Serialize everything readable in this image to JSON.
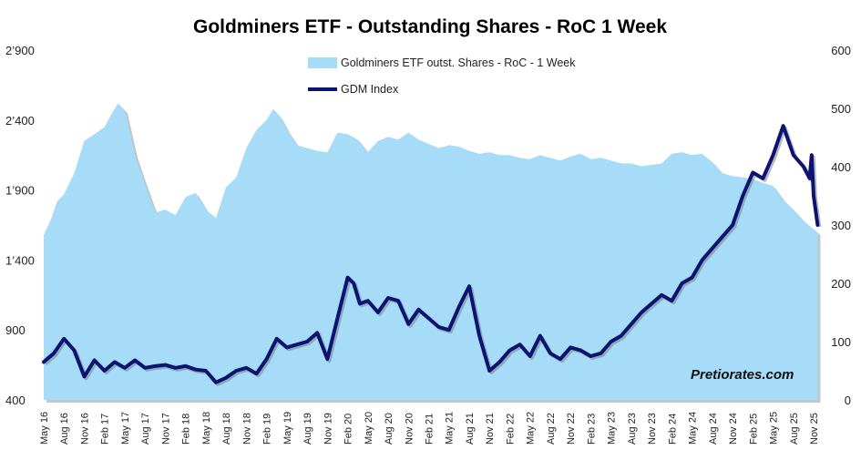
{
  "chart_data": {
    "type": "area+line",
    "title": "Goldminers ETF - Outstanding Shares - RoC 1 Week",
    "watermark": "Pretiorates.com",
    "y_left": {
      "ticks": [
        "400",
        "900",
        "1’400",
        "1’900",
        "2’400",
        "2’900"
      ],
      "range": [
        400,
        2900
      ]
    },
    "y_right": {
      "ticks": [
        "0",
        "100",
        "200",
        "300",
        "400",
        "500",
        "600"
      ],
      "range": [
        0,
        600
      ]
    },
    "x_labels": [
      "May 16",
      "Aug 16",
      "Nov 16",
      "Feb 17",
      "May 17",
      "Aug 17",
      "Nov 17",
      "Feb 18",
      "May 18",
      "Aug 18",
      "Nov 18",
      "Feb 19",
      "May 19",
      "Aug 19",
      "Nov 19",
      "Feb 20",
      "May 20",
      "Aug 20",
      "Nov 20",
      "Feb 21",
      "May 21",
      "Aug 21",
      "Nov 21",
      "Feb 22",
      "May 22",
      "Aug 22",
      "Nov 22",
      "Feb 23",
      "May 23",
      "Aug 23",
      "Nov 23",
      "Feb 24",
      "May 24",
      "Aug 24",
      "Nov 24",
      "Feb 25",
      "May 25",
      "Aug 25",
      "Nov 25"
    ],
    "series": [
      {
        "name": "Goldminers ETF outst. Shares - RoC - 1 Week",
        "kind": "area",
        "axis": "left",
        "color": "#a6dcf8",
        "x": [
          0,
          0.33,
          0.67,
          1,
          1.5,
          2,
          2.5,
          3,
          3.33,
          3.67,
          4,
          4.5,
          5,
          5.5,
          6,
          6.5,
          7,
          7.5,
          8,
          8.5,
          9,
          9.5,
          10,
          10.5,
          11,
          11.33,
          11.67,
          12,
          12.5,
          13,
          13.5,
          14,
          14.5,
          15,
          15.5,
          16,
          16.5,
          17,
          17.5,
          18,
          18.5,
          19,
          19.5,
          20,
          20.5,
          21,
          21.5,
          22,
          22.5,
          23,
          23.5,
          24,
          24.5,
          25,
          25.5,
          26,
          26.5,
          27,
          27.5,
          28,
          28.5,
          29,
          29.5,
          30,
          30.5,
          31,
          31.5,
          32,
          32.5,
          33,
          33.5,
          34,
          34.5,
          35,
          35.5,
          36,
          36.5,
          37,
          37.5,
          38,
          38.2
        ],
        "values": [
          1580,
          1680,
          1820,
          1870,
          2020,
          2250,
          2300,
          2350,
          2440,
          2520,
          2470,
          2150,
          1940,
          1740,
          1760,
          1720,
          1850,
          1880,
          1760,
          1700,
          1920,
          1990,
          2200,
          2330,
          2400,
          2480,
          2420,
          2330,
          2220,
          2200,
          2180,
          2170,
          2310,
          2300,
          2260,
          2170,
          2250,
          2280,
          2260,
          2310,
          2260,
          2230,
          2200,
          2220,
          2210,
          2180,
          2160,
          2170,
          2150,
          2150,
          2130,
          2120,
          2150,
          2130,
          2110,
          2140,
          2160,
          2120,
          2130,
          2110,
          2090,
          2090,
          2070,
          2080,
          2090,
          2160,
          2170,
          2150,
          2160,
          2100,
          2020,
          2000,
          1990,
          1980,
          1950,
          1930,
          1830,
          1760,
          1680,
          1620,
          1600
        ]
      },
      {
        "name": "GDM Index",
        "kind": "line",
        "axis": "right",
        "color": "#0c1370",
        "x": [
          0,
          0.5,
          1,
          1.5,
          2,
          2.5,
          3,
          3.5,
          4,
          4.5,
          5,
          5.5,
          6,
          6.5,
          7,
          7.5,
          8,
          8.5,
          9,
          9.5,
          10,
          10.5,
          11,
          11.5,
          12,
          12.5,
          13,
          13.5,
          14,
          14.5,
          15,
          15.3,
          15.6,
          16,
          16.5,
          17,
          17.5,
          18,
          18.5,
          19,
          19.5,
          20,
          20.5,
          21,
          21.5,
          22,
          22.5,
          23,
          23.5,
          24,
          24.5,
          25,
          25.5,
          26,
          26.5,
          27,
          27.5,
          28,
          28.5,
          29,
          29.5,
          30,
          30.5,
          31,
          31.5,
          32,
          32.5,
          33,
          33.5,
          34,
          34.5,
          35,
          35.5,
          36,
          36.5,
          37,
          37.5,
          37.8,
          37.9,
          38,
          38.2
        ],
        "values": [
          65,
          80,
          105,
          85,
          40,
          68,
          50,
          65,
          55,
          68,
          55,
          58,
          60,
          55,
          58,
          52,
          50,
          30,
          38,
          50,
          55,
          45,
          70,
          105,
          90,
          95,
          100,
          115,
          70,
          140,
          210,
          200,
          165,
          170,
          150,
          175,
          170,
          130,
          155,
          140,
          125,
          120,
          160,
          195,
          110,
          50,
          65,
          85,
          95,
          75,
          110,
          80,
          70,
          90,
          85,
          75,
          80,
          100,
          110,
          130,
          150,
          165,
          180,
          170,
          200,
          210,
          240,
          260,
          280,
          300,
          350,
          390,
          380,
          420,
          470,
          420,
          400,
          380,
          420,
          350,
          300
        ]
      }
    ]
  }
}
